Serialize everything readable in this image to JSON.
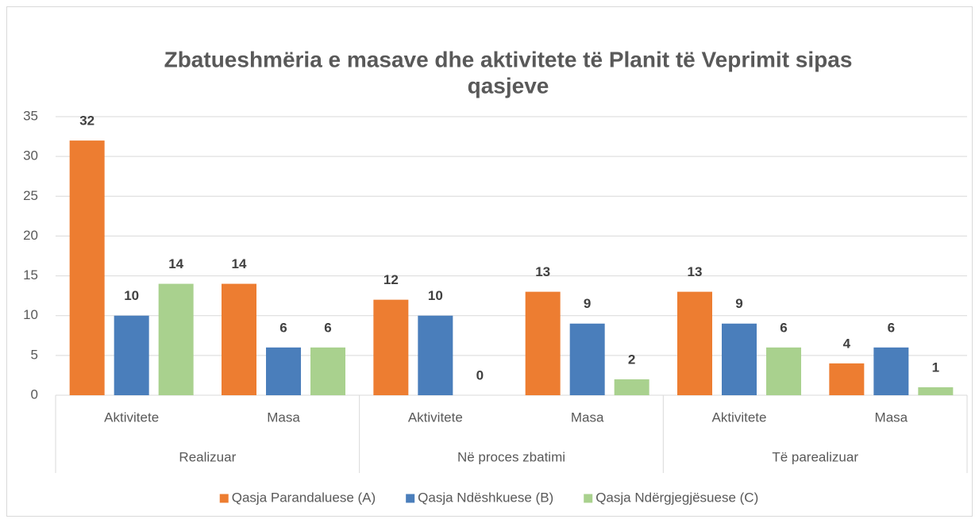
{
  "chart_data": {
    "type": "bar",
    "title": [
      "Zbatueshmëria e masave dhe aktivitete të Planit të Veprimit sipas",
      "qasjeve"
    ],
    "groups": [
      {
        "name": "Realizuar",
        "categories": [
          "Aktivitete",
          "Masa"
        ]
      },
      {
        "name": "Në proces zbatimi",
        "categories": [
          "Aktivitete",
          "Masa"
        ]
      },
      {
        "name": "Të parealizuar",
        "categories": [
          "Aktivitete",
          "Masa"
        ]
      }
    ],
    "series": [
      {
        "name": "Qasja Parandaluese (A)",
        "color": "#ed7d31",
        "values": [
          32,
          14,
          12,
          13,
          13,
          4
        ]
      },
      {
        "name": "Qasja Ndëshkuese (B)",
        "color": "#4a7ebb",
        "values": [
          10,
          6,
          10,
          9,
          9,
          6
        ]
      },
      {
        "name": "Qasja Ndërgjegjësuese (C)",
        "color": "#a9d18e",
        "values": [
          14,
          6,
          0,
          2,
          6,
          1
        ]
      }
    ],
    "ylim": [
      0,
      35
    ],
    "yticks": [
      0,
      5,
      10,
      15,
      20,
      25,
      30,
      35
    ],
    "grid": true,
    "legend": "bottom"
  }
}
